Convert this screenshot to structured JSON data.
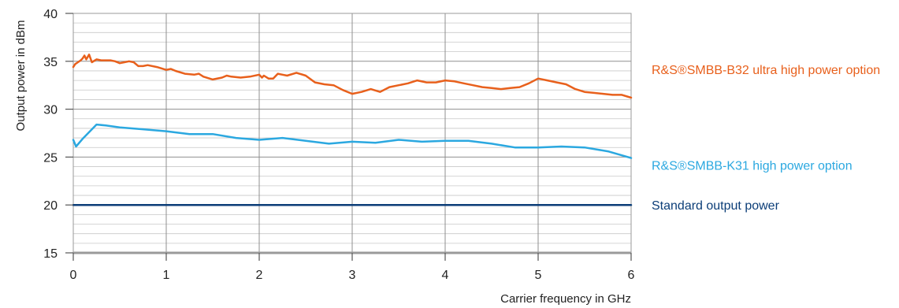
{
  "chart_data": {
    "type": "line",
    "xlabel": "Carrier frequency in GHz",
    "ylabel": "Output power in dBm",
    "xlim": [
      0,
      6
    ],
    "ylim": [
      15,
      40
    ],
    "x_ticks": [
      "0",
      "1",
      "2",
      "3",
      "4",
      "5",
      "6"
    ],
    "y_ticks": [
      "15",
      "20",
      "25",
      "30",
      "35",
      "40"
    ],
    "grid": true,
    "legend": "right",
    "series": [
      {
        "name": "R&S®SMBB-B32 ultra high power option",
        "color": "#e8601c",
        "points": [
          [
            0,
            34.4
          ],
          [
            0.02,
            34.7
          ],
          [
            0.05,
            34.9
          ],
          [
            0.08,
            35.1
          ],
          [
            0.1,
            35.3
          ],
          [
            0.12,
            35.6
          ],
          [
            0.14,
            35.2
          ],
          [
            0.17,
            35.7
          ],
          [
            0.2,
            34.9
          ],
          [
            0.25,
            35.2
          ],
          [
            0.3,
            35.1
          ],
          [
            0.4,
            35.1
          ],
          [
            0.45,
            35.0
          ],
          [
            0.5,
            34.8
          ],
          [
            0.55,
            34.9
          ],
          [
            0.6,
            35.0
          ],
          [
            0.65,
            34.9
          ],
          [
            0.7,
            34.5
          ],
          [
            0.75,
            34.5
          ],
          [
            0.8,
            34.6
          ],
          [
            0.9,
            34.4
          ],
          [
            1.0,
            34.1
          ],
          [
            1.05,
            34.2
          ],
          [
            1.1,
            34.0
          ],
          [
            1.2,
            33.7
          ],
          [
            1.3,
            33.6
          ],
          [
            1.35,
            33.7
          ],
          [
            1.4,
            33.4
          ],
          [
            1.5,
            33.1
          ],
          [
            1.6,
            33.3
          ],
          [
            1.65,
            33.5
          ],
          [
            1.7,
            33.4
          ],
          [
            1.8,
            33.3
          ],
          [
            1.9,
            33.4
          ],
          [
            2.0,
            33.6
          ],
          [
            2.03,
            33.3
          ],
          [
            2.05,
            33.5
          ],
          [
            2.1,
            33.2
          ],
          [
            2.15,
            33.2
          ],
          [
            2.2,
            33.7
          ],
          [
            2.25,
            33.6
          ],
          [
            2.3,
            33.5
          ],
          [
            2.4,
            33.8
          ],
          [
            2.5,
            33.5
          ],
          [
            2.6,
            32.8
          ],
          [
            2.7,
            32.6
          ],
          [
            2.8,
            32.5
          ],
          [
            2.9,
            32.0
          ],
          [
            3.0,
            31.6
          ],
          [
            3.1,
            31.8
          ],
          [
            3.2,
            32.1
          ],
          [
            3.3,
            31.8
          ],
          [
            3.4,
            32.3
          ],
          [
            3.5,
            32.5
          ],
          [
            3.6,
            32.7
          ],
          [
            3.7,
            33.0
          ],
          [
            3.8,
            32.8
          ],
          [
            3.9,
            32.8
          ],
          [
            4.0,
            33.0
          ],
          [
            4.1,
            32.9
          ],
          [
            4.2,
            32.7
          ],
          [
            4.3,
            32.5
          ],
          [
            4.4,
            32.3
          ],
          [
            4.5,
            32.2
          ],
          [
            4.6,
            32.1
          ],
          [
            4.7,
            32.2
          ],
          [
            4.8,
            32.3
          ],
          [
            4.9,
            32.7
          ],
          [
            5.0,
            33.2
          ],
          [
            5.1,
            33.0
          ],
          [
            5.2,
            32.8
          ],
          [
            5.3,
            32.6
          ],
          [
            5.4,
            32.1
          ],
          [
            5.5,
            31.8
          ],
          [
            5.6,
            31.7
          ],
          [
            5.7,
            31.6
          ],
          [
            5.8,
            31.5
          ],
          [
            5.9,
            31.5
          ],
          [
            6.0,
            31.2
          ]
        ]
      },
      {
        "name": "R&S®SMBB-K31 high power option",
        "color": "#2ba8e0",
        "points": [
          [
            0,
            26.8
          ],
          [
            0.03,
            26.1
          ],
          [
            0.1,
            26.9
          ],
          [
            0.25,
            28.4
          ],
          [
            0.35,
            28.3
          ],
          [
            0.5,
            28.1
          ],
          [
            0.75,
            27.9
          ],
          [
            1.0,
            27.7
          ],
          [
            1.25,
            27.4
          ],
          [
            1.5,
            27.4
          ],
          [
            1.75,
            27.0
          ],
          [
            2.0,
            26.8
          ],
          [
            2.25,
            27.0
          ],
          [
            2.5,
            26.7
          ],
          [
            2.75,
            26.4
          ],
          [
            3.0,
            26.6
          ],
          [
            3.25,
            26.5
          ],
          [
            3.5,
            26.8
          ],
          [
            3.75,
            26.6
          ],
          [
            4.0,
            26.7
          ],
          [
            4.25,
            26.7
          ],
          [
            4.5,
            26.4
          ],
          [
            4.75,
            26.0
          ],
          [
            5.0,
            26.0
          ],
          [
            5.25,
            26.1
          ],
          [
            5.5,
            26.0
          ],
          [
            5.75,
            25.6
          ],
          [
            6.0,
            24.9
          ]
        ]
      },
      {
        "name": "Standard output power",
        "color": "#0c3e78",
        "points": [
          [
            0,
            20.0
          ],
          [
            6.0,
            20.0
          ]
        ]
      }
    ]
  }
}
